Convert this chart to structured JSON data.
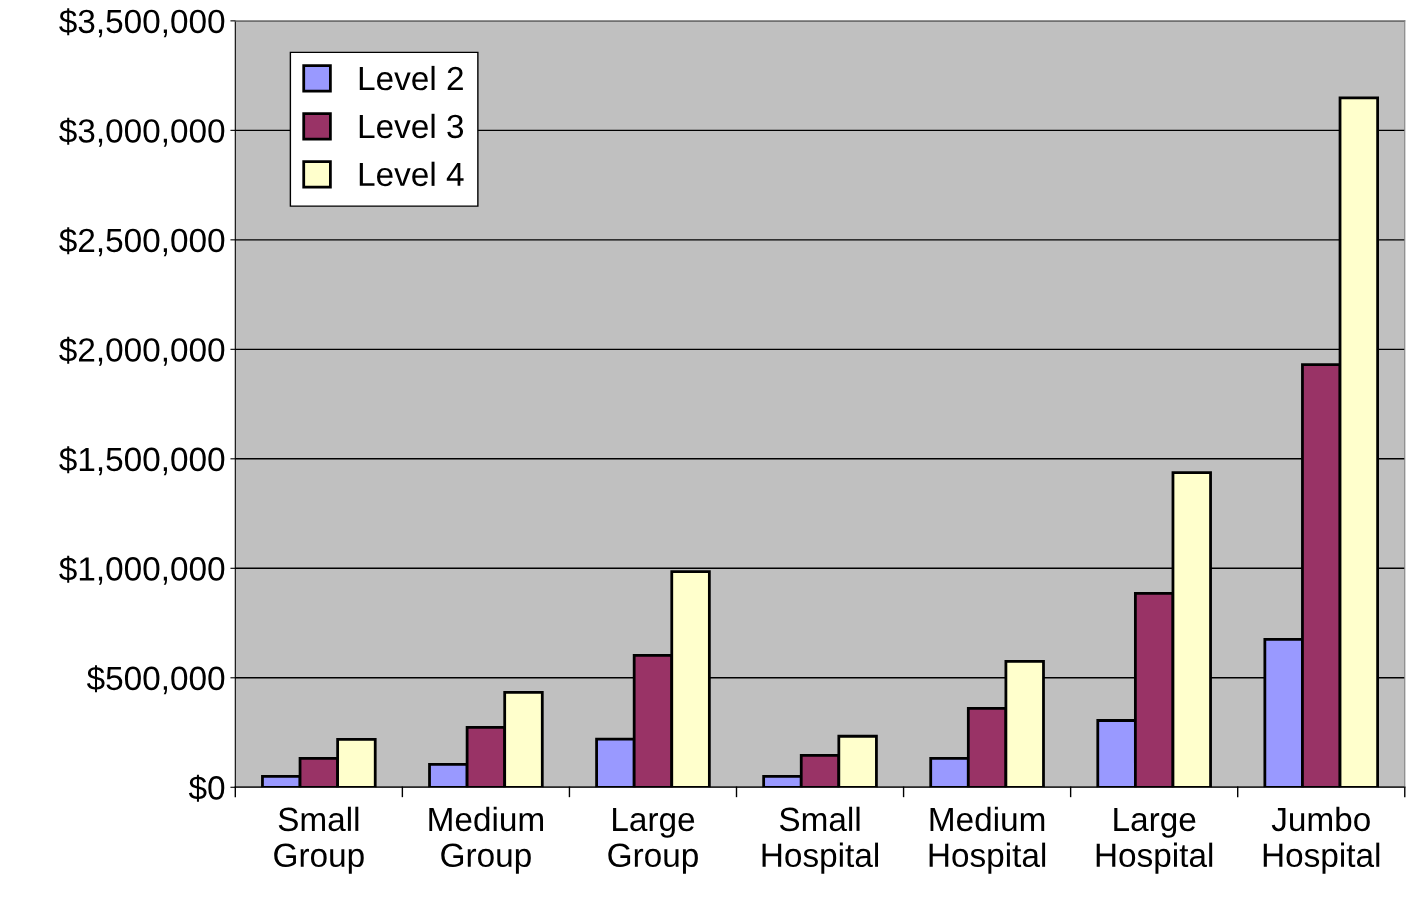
{
  "chart_data": {
    "type": "bar",
    "categories": [
      "Small\nGroup",
      "Medium\nGroup",
      "Large\nGroup",
      "Small\nHospital",
      "Medium\nHospital",
      "Large\nHospital",
      "Jumbo\nHospital"
    ],
    "series": [
      {
        "name": "Level 2",
        "color": "#9999ff",
        "values": [
          50000,
          105000,
          220000,
          50000,
          132000,
          305000,
          675000
        ]
      },
      {
        "name": "Level 3",
        "color": "#993366",
        "values": [
          132000,
          274000,
          602000,
          146000,
          360000,
          885000,
          1930000
        ]
      },
      {
        "name": "Level 4",
        "color": "#ffffcc",
        "values": [
          219000,
          433000,
          985000,
          233000,
          575000,
          1437000,
          3148000
        ]
      }
    ],
    "ylim": [
      0,
      3500000
    ],
    "yticks": [
      {
        "value": 0,
        "label": "$0"
      },
      {
        "value": 500000,
        "label": "$500,000"
      },
      {
        "value": 1000000,
        "label": "$1,000,000"
      },
      {
        "value": 1500000,
        "label": "$1,500,000"
      },
      {
        "value": 2000000,
        "label": "$2,000,000"
      },
      {
        "value": 2500000,
        "label": "$2,500,000"
      },
      {
        "value": 3000000,
        "label": "$3,000,000"
      },
      {
        "value": 3500000,
        "label": "$3,500,000"
      }
    ],
    "grid": "y",
    "legend": "top left"
  }
}
